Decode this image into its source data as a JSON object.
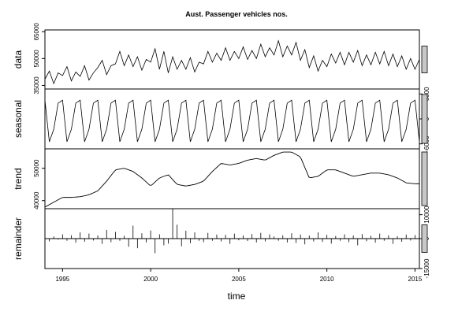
{
  "chart_data": {
    "type": "line",
    "title": "Aust. Passenger vehicles nos.",
    "xlabel": "time",
    "x_range": [
      1994.0,
      2015.25
    ],
    "x_ticks": [
      1995,
      2000,
      2005,
      2010,
      2015
    ],
    "x_tick_labels": [
      "1995",
      "2000",
      "2005",
      "2010",
      "2015"
    ],
    "panels": [
      {
        "name": "data",
        "ylabel": "data",
        "ylim": [
          33000,
          66000
        ],
        "y_ticks": [
          35000,
          50000,
          65000
        ],
        "y_tick_labels": [
          "35000",
          "50000",
          "65000"
        ],
        "y_axis_side": "left",
        "style": "line",
        "series": [
          {
            "quarters": [
              "1994 Q1",
              "1994 Q2",
              "1994 Q3",
              "1994 Q4",
              "1995 Q1",
              "1995 Q2",
              "1995 Q3",
              "1995 Q4",
              "1996 Q1",
              "1996 Q2",
              "1996 Q3",
              "1996 Q4",
              "1997 Q1",
              "1997 Q2",
              "1997 Q3",
              "1997 Q4",
              "1998 Q1",
              "1998 Q2",
              "1998 Q3",
              "1998 Q4",
              "1999 Q1",
              "1999 Q2",
              "1999 Q3",
              "1999 Q4",
              "2000 Q1",
              "2000 Q2",
              "2000 Q3",
              "2000 Q4",
              "2001 Q1",
              "2001 Q2",
              "2001 Q3",
              "2001 Q4",
              "2002 Q1",
              "2002 Q2",
              "2002 Q3",
              "2002 Q4",
              "2003 Q1",
              "2003 Q2",
              "2003 Q3",
              "2003 Q4",
              "2004 Q1",
              "2004 Q2",
              "2004 Q3",
              "2004 Q4",
              "2005 Q1",
              "2005 Q2",
              "2005 Q3",
              "2005 Q4",
              "2006 Q1",
              "2006 Q2",
              "2006 Q3",
              "2006 Q4",
              "2007 Q1",
              "2007 Q2",
              "2007 Q3",
              "2007 Q4",
              "2008 Q1",
              "2008 Q2",
              "2008 Q3",
              "2008 Q4",
              "2009 Q1",
              "2009 Q2",
              "2009 Q3",
              "2009 Q4",
              "2010 Q1",
              "2010 Q2",
              "2010 Q3",
              "2010 Q4",
              "2011 Q1",
              "2011 Q2",
              "2011 Q3",
              "2011 Q4",
              "2012 Q1",
              "2012 Q2",
              "2012 Q3",
              "2012 Q4",
              "2013 Q1",
              "2013 Q2",
              "2013 Q3",
              "2013 Q4",
              "2014 Q1",
              "2014 Q2",
              "2014 Q3",
              "2014 Q4",
              "2015 Q1",
              "2015 Q2"
            ]
          }
        ]
      },
      {
        "name": "seasonal",
        "ylabel": "seasonal",
        "ylim": [
          -7200,
          7200
        ],
        "y_ticks": [
          -6000,
          0,
          6000
        ],
        "y_tick_labels": [
          "-6000",
          "0",
          "6000"
        ],
        "y_axis_side": "right",
        "style": "line"
      },
      {
        "name": "trend",
        "ylabel": "trend",
        "ylim": [
          37500,
          56000
        ],
        "y_ticks": [
          40000,
          50000
        ],
        "y_tick_labels": [
          "40000",
          "50000"
        ],
        "y_axis_side": "left",
        "style": "line"
      },
      {
        "name": "remainder",
        "ylabel": "remainder",
        "ylim": [
          -12500,
          12500
        ],
        "y_ticks": [
          -15000,
          0,
          10000
        ],
        "y_tick_labels": [
          "-15000",
          "0",
          "10000"
        ],
        "y_axis_side": "right",
        "style": "bars",
        "zero_line": true
      }
    ],
    "data_values": [
      38500,
      43000,
      36000,
      42000,
      40500,
      45500,
      37500,
      42500,
      40000,
      46000,
      38000,
      42000,
      45000,
      49000,
      41000,
      46000,
      47000,
      54000,
      46000,
      52000,
      45500,
      51000,
      43500,
      49500,
      48000,
      55500,
      44000,
      54000,
      42000,
      51000,
      44000,
      49000,
      44000,
      50500,
      42500,
      48000,
      47000,
      54000,
      48000,
      53000,
      49000,
      56000,
      49000,
      54000,
      50000,
      56500,
      49500,
      54500,
      50000,
      58000,
      51000,
      56000,
      52000,
      60000,
      51000,
      57000,
      52000,
      59000,
      49000,
      55000,
      45000,
      51500,
      43000,
      49000,
      45500,
      52500,
      47500,
      53500,
      46500,
      53500,
      48000,
      54500,
      46000,
      52000,
      46500,
      53500,
      47000,
      54000,
      46000,
      52500,
      45500,
      51500,
      44000,
      50000,
      44000,
      49500
    ],
    "seasonal_values": [
      4500,
      -5500,
      -2500,
      3800,
      4500,
      -5500,
      -2500,
      3800,
      4500,
      -5500,
      -2500,
      3800,
      4500,
      -5500,
      -2500,
      3800,
      4500,
      -5500,
      -2500,
      3800,
      4500,
      -5500,
      -2500,
      3800,
      4500,
      -5500,
      -2500,
      3800,
      4500,
      -5500,
      -2500,
      3800,
      4500,
      -5500,
      -2500,
      3800,
      4500,
      -5500,
      -2500,
      3800,
      4500,
      -5500,
      -2500,
      3800,
      4500,
      -5500,
      -2500,
      3800,
      4500,
      -5500,
      -2500,
      3800,
      4500,
      -5500,
      -2500,
      3800,
      4500,
      -5500,
      -2500,
      3800,
      4500,
      -5500,
      -2500,
      3800,
      4500,
      -5500,
      -2500,
      3800,
      4500,
      -5500,
      -2500,
      3800,
      4500,
      -5500,
      -2500,
      3800,
      4500,
      -5500,
      -2500,
      3800,
      4500,
      -5500,
      -2500,
      3800,
      4500,
      -5500
    ],
    "trend_knots_x": [
      1994.0,
      1994.5,
      1995.0,
      1995.5,
      1996.0,
      1996.5,
      1997.0,
      1997.5,
      1998.0,
      1998.5,
      1999.0,
      1999.5,
      2000.0,
      2000.5,
      2001.0,
      2001.5,
      2002.0,
      2002.5,
      2003.0,
      2003.5,
      2004.0,
      2004.5,
      2005.0,
      2005.5,
      2006.0,
      2006.5,
      2007.0,
      2007.5,
      2008.0,
      2008.5,
      2009.0,
      2009.5,
      2010.0,
      2010.5,
      2011.0,
      2011.5,
      2012.0,
      2012.5,
      2013.0,
      2013.5,
      2014.0,
      2014.5,
      2015.0,
      2015.25
    ],
    "trend_knots_y": [
      38000,
      39500,
      41000,
      41000,
      41200,
      41800,
      43000,
      46000,
      49500,
      50000,
      49000,
      47000,
      44500,
      47000,
      48000,
      45000,
      44500,
      45000,
      46000,
      49000,
      51500,
      51000,
      51500,
      52500,
      53000,
      52500,
      54000,
      55000,
      55000,
      53500,
      47000,
      47500,
      49500,
      49500,
      48500,
      47500,
      48000,
      48500,
      48500,
      48000,
      47000,
      45500,
      45200,
      45200
    ],
    "remainder_values": [
      600,
      -1200,
      900,
      -400,
      1800,
      -900,
      1400,
      -1700,
      2600,
      -1300,
      2100,
      -800,
      1300,
      -2200,
      3600,
      -1500,
      2800,
      -900,
      1200,
      -3400,
      5400,
      -4000,
      2200,
      -1600,
      3400,
      -6100,
      1800,
      -2800,
      -2100,
      14000,
      5800,
      -3200,
      3300,
      -1900,
      2600,
      -900,
      -1500,
      2400,
      -900,
      1700,
      -1200,
      1600,
      -2200,
      2100,
      -700,
      1300,
      -1000,
      1900,
      -1600,
      2400,
      -1200,
      1800,
      900,
      -900,
      1400,
      -1600,
      2200,
      -1800,
      1700,
      -2400,
      1300,
      -1200,
      2600,
      -1400,
      1600,
      -2100,
      1100,
      -900,
      1800,
      -1500,
      1300,
      -2800,
      1900,
      -1100,
      1200,
      -1700,
      2100,
      -900,
      1400,
      -2200,
      1000,
      -1300,
      1700,
      -800,
      1500,
      -600
    ]
  }
}
